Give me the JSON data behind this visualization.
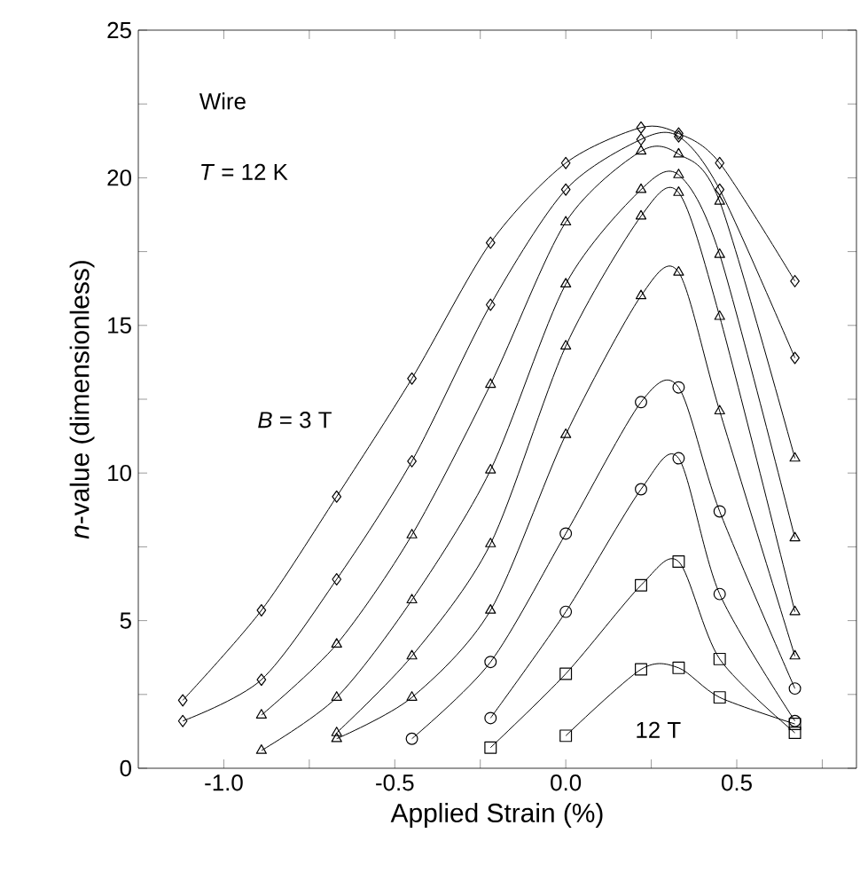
{
  "chart_data": {
    "type": "line",
    "xlabel": "Applied Strain (%)",
    "ylabel": "*n*-value (dimensionless)",
    "annotations": [
      "Wire",
      "*T* = 12 K",
      "*B* = 3 T",
      "12 T"
    ],
    "xlim": [
      -1.25,
      0.85
    ],
    "ylim": [
      0,
      25
    ],
    "xticks": [
      {
        "value": -1.0,
        "label": "-1.0"
      },
      {
        "value": -0.75,
        "label": null
      },
      {
        "value": -0.5,
        "label": "-0.5"
      },
      {
        "value": -0.25,
        "label": null
      },
      {
        "value": 0,
        "label": "0.0"
      },
      {
        "value": 0.25,
        "label": null
      },
      {
        "value": 0.5,
        "label": "0.5"
      },
      {
        "value": 0.75,
        "label": null
      }
    ],
    "yticks": [
      0,
      {
        "value": 2.5,
        "label": null
      },
      5,
      {
        "value": 7.5,
        "label": null
      },
      10,
      {
        "value": 12.5,
        "label": null
      },
      15,
      {
        "value": 17.5,
        "label": null
      },
      20,
      {
        "value": 22.5,
        "label": null
      },
      25
    ],
    "line_style": "solid",
    "series": [
      {
        "color": "#000000",
        "marker": "diamond",
        "x": [
          -1.12,
          -0.89,
          -0.67,
          -0.45,
          -0.22,
          0.0,
          0.22,
          0.33,
          0.45,
          0.67
        ],
        "values": [
          2.3,
          5.35,
          9.2,
          13.2,
          17.8,
          20.5,
          21.7,
          21.5,
          20.5,
          16.5
        ]
      },
      {
        "color": "#000000",
        "marker": "diamond",
        "x": [
          -1.12,
          -0.89,
          -0.67,
          -0.45,
          -0.22,
          0.0,
          0.22,
          0.33,
          0.45,
          0.67
        ],
        "values": [
          1.6,
          3.0,
          6.4,
          10.4,
          15.7,
          19.6,
          21.3,
          21.4,
          19.6,
          13.9
        ]
      },
      {
        "color": "#000000",
        "marker": "triangle",
        "x": [
          -0.89,
          -0.67,
          -0.45,
          -0.22,
          0.0,
          0.22,
          0.33,
          0.45,
          0.67
        ],
        "values": [
          1.8,
          4.2,
          7.9,
          13.0,
          18.5,
          20.9,
          20.8,
          19.2,
          10.5
        ]
      },
      {
        "color": "#000000",
        "marker": "triangle",
        "x": [
          -0.89,
          -0.67,
          -0.45,
          -0.22,
          0.0,
          0.22,
          0.33,
          0.45,
          0.67
        ],
        "values": [
          0.6,
          2.4,
          5.7,
          10.1,
          16.4,
          19.6,
          20.1,
          17.4,
          7.8
        ]
      },
      {
        "color": "#000000",
        "marker": "triangle",
        "x": [
          -0.67,
          -0.45,
          -0.22,
          0.0,
          0.22,
          0.33,
          0.45,
          0.67
        ],
        "values": [
          1.2,
          3.8,
          7.6,
          14.3,
          18.7,
          19.5,
          15.3,
          5.3
        ]
      },
      {
        "color": "#000000",
        "marker": "triangle",
        "x": [
          -0.67,
          -0.45,
          -0.22,
          0.0,
          0.22,
          0.33,
          0.45,
          0.67
        ],
        "values": [
          1.0,
          2.4,
          5.35,
          11.3,
          16.0,
          16.8,
          12.1,
          3.8
        ]
      },
      {
        "color": "#000000",
        "marker": "circle",
        "x": [
          -0.45,
          -0.22,
          0.0,
          0.22,
          0.33,
          0.45,
          0.67
        ],
        "values": [
          1.0,
          3.6,
          7.95,
          12.4,
          12.9,
          8.7,
          2.7
        ]
      },
      {
        "color": "#000000",
        "marker": "circle",
        "x": [
          -0.22,
          0.0,
          0.22,
          0.33,
          0.45,
          0.67
        ],
        "values": [
          1.7,
          5.3,
          9.45,
          10.5,
          5.9,
          1.6
        ]
      },
      {
        "color": "#000000",
        "marker": "square",
        "x": [
          -0.22,
          0.0,
          0.22,
          0.33,
          0.45,
          0.67
        ],
        "values": [
          0.7,
          3.2,
          6.2,
          7.0,
          3.7,
          1.2
        ]
      },
      {
        "color": "#000000",
        "marker": "square",
        "x": [
          0.0,
          0.22,
          0.33,
          0.45,
          0.67
        ],
        "values": [
          1.1,
          3.35,
          3.4,
          2.4,
          1.5
        ]
      }
    ]
  }
}
